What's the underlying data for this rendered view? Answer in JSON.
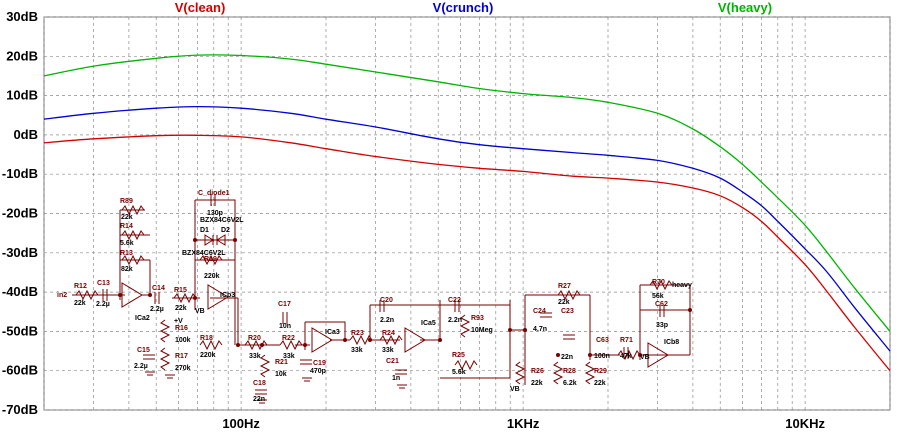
{
  "chart_data": {
    "type": "line",
    "x_scale": "log",
    "xlim": [
      20,
      20000
    ],
    "ylim": [
      -70,
      30
    ],
    "y_ticks": [
      30,
      20,
      10,
      0,
      -10,
      -20,
      -30,
      -40,
      -50,
      -60,
      -70
    ],
    "y_tick_labels": [
      "30dB",
      "20dB",
      "10dB",
      "0dB",
      "-10dB",
      "-20dB",
      "-30dB",
      "-40dB",
      "-50dB",
      "-60dB",
      "-70dB"
    ],
    "x_ticks": [
      100,
      1000,
      10000
    ],
    "x_tick_labels": [
      "100Hz",
      "1KHz",
      "10KHz"
    ],
    "grid": true,
    "legend_position": "top",
    "series": [
      {
        "name": "V(clean)",
        "color": "#d40000",
        "x": [
          20,
          30,
          50,
          70,
          100,
          150,
          200,
          300,
          500,
          700,
          1000,
          1500,
          2000,
          3000,
          4000,
          5000,
          6000,
          7000,
          8000,
          10000,
          12000,
          15000,
          20000
        ],
        "y": [
          -2,
          -1,
          -0.2,
          -0.1,
          -0.5,
          -2,
          -3.5,
          -5.5,
          -7.5,
          -8.5,
          -9.3,
          -10.5,
          -11,
          -12,
          -13.5,
          -15.5,
          -18.5,
          -22,
          -26,
          -33,
          -40,
          -49,
          -60
        ]
      },
      {
        "name": "V(crunch)",
        "color": "#0000d4",
        "x": [
          20,
          30,
          50,
          70,
          100,
          150,
          200,
          300,
          500,
          700,
          1000,
          1500,
          2000,
          3000,
          4000,
          5000,
          6000,
          7000,
          8000,
          10000,
          12000,
          15000,
          20000
        ],
        "y": [
          4,
          5.5,
          6.8,
          7.2,
          6.8,
          5.5,
          4,
          2,
          -1,
          -2.5,
          -3.5,
          -4.5,
          -5.2,
          -6.5,
          -8.5,
          -11,
          -14.5,
          -18,
          -22,
          -29,
          -35,
          -44,
          -55
        ]
      },
      {
        "name": "V(heavy)",
        "color": "#00b400",
        "x": [
          20,
          30,
          50,
          70,
          100,
          150,
          200,
          300,
          500,
          700,
          1000,
          1500,
          2000,
          3000,
          4000,
          5000,
          6000,
          7000,
          8000,
          10000,
          12000,
          15000,
          20000
        ],
        "y": [
          15,
          17.5,
          19.5,
          20.3,
          20.2,
          19.3,
          18,
          16,
          13.5,
          11.8,
          10.5,
          9.5,
          8.3,
          5.5,
          1.5,
          -3,
          -7.5,
          -12,
          -16,
          -23,
          -30,
          -39,
          -50
        ]
      }
    ]
  },
  "schematic": {
    "labels": {
      "in": "in2",
      "r12": "R12",
      "r12v": "22k",
      "c13": "C13",
      "c13v": "2.2µ",
      "r89": "R89",
      "r89v": "22k",
      "r14": "R14",
      "r14v": "5.6k",
      "r13": "R13",
      "r13v": "82k",
      "ica2": "ICa2",
      "c14": "C14",
      "c14v": "2.2µ",
      "r15": "R15",
      "r15v": "22k",
      "r16": "R16",
      "r16v": "100k",
      "r17": "R17",
      "r17v": "270k",
      "c15": "C15",
      "c15v": "2.2µ",
      "cdiode": "C_diode1",
      "cdiodev": "130p",
      "bzx1": "BZX84C6V2L",
      "d1": "D1",
      "d2": "D2",
      "bzx2": "BZX84C6V2L",
      "r19": "R19",
      "r19v": "220k",
      "icb3": "ICb3",
      "vb1": "VB",
      "r18": "R18",
      "r18v": "220k",
      "r20": "R20",
      "r20v": "33k",
      "c17": "C17",
      "c17v": "10n",
      "r22": "R22",
      "r22v": "33k",
      "r21": "R21",
      "r21v": "10k",
      "c18": "C18",
      "c18v": "22n",
      "ica3": "ICa3",
      "c19": "C19",
      "c19v": "470p",
      "r23": "R23",
      "r23v": "33k",
      "c20": "C20",
      "c20v": "2.2n",
      "r24": "R24",
      "r24v": "33k",
      "c21": "C21",
      "c21v": "1n",
      "ica5": "ICa5",
      "c22": "C22",
      "c22v": "2.2n",
      "r93": "R93",
      "r93v": "10Meg",
      "r25": "R25",
      "r25v": "5.6k",
      "r26": "R26",
      "r26v": "22k",
      "vb2": "VB",
      "c24": "C24",
      "c24v": "4.7n",
      "r27": "R27",
      "r27v": "22k",
      "c23": "C23",
      "c23v": "22n",
      "r28": "R28",
      "r28v": "6.2k",
      "r29": "R29",
      "r29v": "22k",
      "c63": "C63",
      "c63v": "100n",
      "r71": "R71",
      "r71v": "47k",
      "r70": "R70",
      "r70v": "56k",
      "heavy": "heavy",
      "c62": "C62",
      "c62v": "33p",
      "icb8": "ICb8",
      "vb3": "VB",
      "vplus": "+V"
    }
  }
}
